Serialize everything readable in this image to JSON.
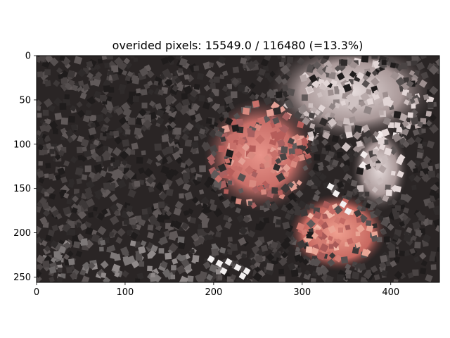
{
  "title": "overided pixels: 15549.0 / 116480 (=13.3%)",
  "image": {
    "kind": "mosaic-painting",
    "description_icon": "pointillist-tile-portrait",
    "width": 455,
    "height": 256,
    "xlim": [
      0,
      455
    ],
    "ylim": [
      256,
      0
    ]
  },
  "axes": {
    "x_ticks": [
      0,
      100,
      200,
      300,
      400
    ],
    "y_ticks": [
      0,
      50,
      100,
      150,
      200,
      250
    ],
    "x_tick_labels": [
      "0",
      "100",
      "200",
      "300",
      "400"
    ],
    "y_tick_labels": [
      "0",
      "50",
      "100",
      "150",
      "200",
      "250"
    ],
    "grid": false
  },
  "colors": {
    "background": "#ffffff",
    "axis": "#000000"
  }
}
